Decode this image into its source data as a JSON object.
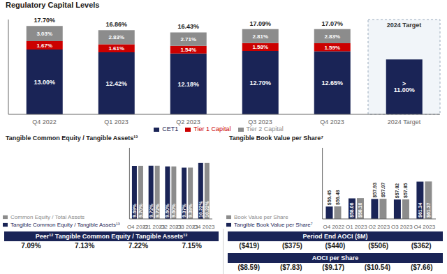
{
  "chart_data": [
    {
      "type": "bar",
      "title": "Regulatory Capital Levels",
      "stacked": true,
      "categories": [
        "Q4 2022",
        "Q1 2023",
        "Q2 2023",
        "Q3 2023",
        "Q4 2023",
        "2024 Target"
      ],
      "series": [
        {
          "name": "CET1",
          "color": "#1a2456",
          "values": [
            13.0,
            12.42,
            12.18,
            12.7,
            12.65,
            11.0
          ],
          "value_labels": [
            "13.00%",
            "12.42%",
            "12.18%",
            "12.70%",
            "12.65%",
            "> 11.00%"
          ]
        },
        {
          "name": "Tier 1 Capital",
          "color": "#cc0000",
          "values": [
            1.67,
            1.61,
            1.54,
            1.58,
            1.59,
            null
          ],
          "value_labels": [
            "1.67%",
            "1.61%",
            "1.54%",
            "1.58%",
            "1.59%",
            null
          ]
        },
        {
          "name": "Tier 2 Capital",
          "color": "#8c8c8c",
          "values": [
            3.03,
            2.83,
            2.71,
            2.81,
            2.83,
            null
          ],
          "value_labels": [
            "3.03%",
            "2.83%",
            "2.71%",
            "2.81%",
            "2.83%",
            null
          ]
        }
      ],
      "totals": [
        17.7,
        16.86,
        16.43,
        17.09,
        17.07,
        null
      ],
      "total_labels": [
        "17.70%",
        "16.86%",
        "16.43%",
        "17.09%",
        "17.07%",
        null
      ],
      "annotations": [
        "2024 Target"
      ],
      "ylim": [
        0,
        19
      ],
      "tick_labels": "x",
      "legend": "bottom",
      "data_labels": true,
      "grid": false
    },
    {
      "type": "bar",
      "title": "Tangible Common Equity / Tangible Assets¹³",
      "categories": [
        "Q4 2022",
        "Q1 2023",
        "Q2 2023",
        "Q3 2023",
        "Q4 2023"
      ],
      "series": [
        {
          "name": "Tangible Common Equity / Tangible Assets¹³",
          "color": "#1a2456",
          "values": [
            9.69,
            9.72,
            9.6,
            9.37,
            10.22
          ],
          "value_labels": [
            "9.69%",
            "9.72%",
            "9.60%",
            "9.37%",
            "10.22%"
          ]
        },
        {
          "name": "Common Equity / Total Assets",
          "color": "#8c8c8c",
          "values": [
            9.7,
            9.72,
            9.6,
            9.38,
            10.22
          ],
          "value_labels": [
            "9.70%",
            "9.72%",
            "9.60%",
            "9.38%",
            "10.22%"
          ]
        }
      ],
      "ylim": [
        0,
        13
      ],
      "tick_labels": "x",
      "legend": "bottom",
      "data_labels": true,
      "grid": false
    },
    {
      "type": "bar",
      "title": "Tangible Book Value per Share⁷",
      "categories": [
        "Q4 2022",
        "Q1 2023",
        "Q2 2023",
        "Q3 2023",
        "Q4 2023"
      ],
      "series": [
        {
          "name": "Tangible Book Value per Share⁷",
          "color": "#1a2456",
          "values": [
            56.45,
            58.06,
            57.93,
            57.82,
            61.34
          ],
          "value_labels": [
            "$56.45",
            "$58.06",
            "$57.93",
            "$57.82",
            "$61.34"
          ]
        },
        {
          "name": "Book Value per Share",
          "color": "#8c8c8c",
          "values": [
            56.48,
            58.1,
            57.97,
            57.85,
            61.37
          ],
          "value_labels": [
            "$56.48",
            "$58.10",
            "$57.97",
            "$57.85",
            "$61.37"
          ]
        }
      ],
      "ylim": [
        54,
        68
      ],
      "tick_labels": "x",
      "legend": "bottom",
      "data_labels": true,
      "grid": false
    },
    {
      "type": "table",
      "title": "Peer¹² Tangible Common Equity / Tangible Assets¹³",
      "color": "#1a2456",
      "values": [
        7.09,
        7.13,
        7.22,
        7.15
      ],
      "value_labels": [
        "7.09%",
        "7.13%",
        "7.22%",
        "7.15%"
      ]
    },
    {
      "type": "table",
      "title": "Period End AOCI ($M)",
      "color": "#1a2456",
      "values": [
        -419,
        -375,
        -440,
        -506,
        -362
      ],
      "value_labels": [
        "($419)",
        "($375)",
        "($440)",
        "($506)",
        "($362)"
      ]
    },
    {
      "type": "table",
      "title": "AOCI per Share",
      "color": "#1a2456",
      "values": [
        -8.59,
        -7.83,
        -9.17,
        -10.54,
        -7.66
      ],
      "value_labels": [
        "($8.59)",
        "($7.83)",
        "($9.17)",
        "($10.54)",
        "($7.66)"
      ]
    }
  ]
}
